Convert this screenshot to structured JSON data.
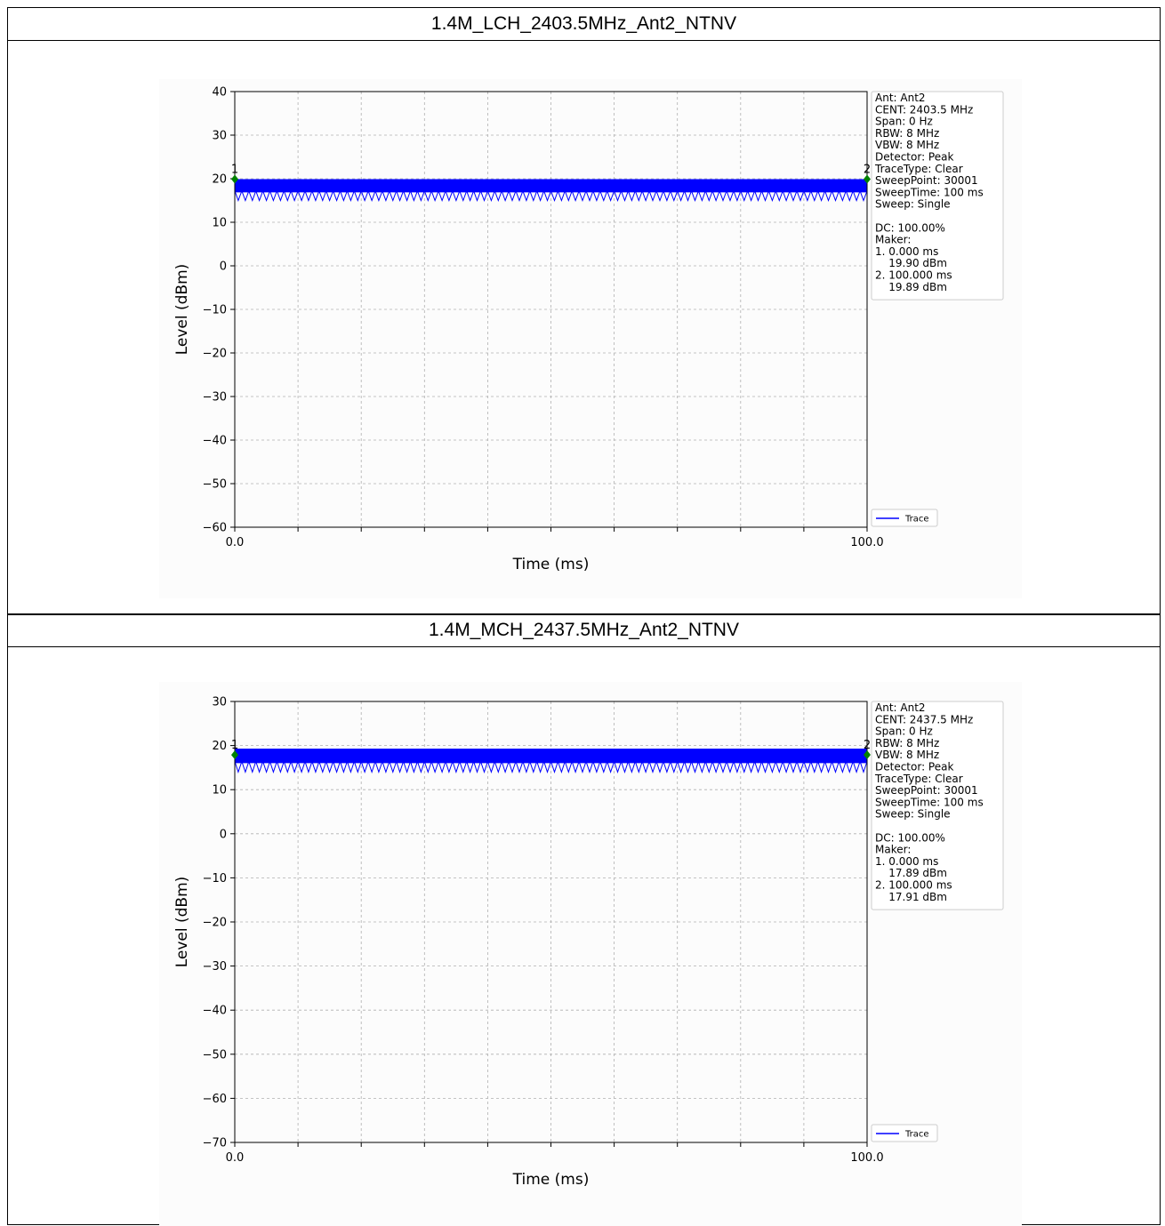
{
  "panels": [
    {
      "title": "1.4M_LCH_2403.5MHz_Ant2_NTNV",
      "xlabel": "Time (ms)",
      "ylabel": "Level (dBm)",
      "xticks": [
        "0.0",
        "100.0"
      ],
      "yticks": [
        "40",
        "30",
        "20",
        "10",
        "0",
        "−10",
        "−20",
        "−30",
        "−40",
        "−50",
        "−60"
      ],
      "info_lines": [
        "Ant: Ant2",
        "CENT: 2403.5 MHz",
        "Span: 0 Hz",
        "RBW: 8 MHz",
        "VBW: 8 MHz",
        "Detector: Peak",
        "TraceType: Clear",
        "SweepPoint: 30001",
        "SweepTime: 100 ms",
        "Sweep: Single",
        "",
        "DC: 100.00%",
        "Maker:",
        "1. 0.000 ms",
        "    19.90 dBm",
        "2. 100.000 ms",
        "    19.89 dBm"
      ],
      "legend_label": "Trace",
      "marker_labels": [
        "1",
        "2"
      ]
    },
    {
      "title": "1.4M_MCH_2437.5MHz_Ant2_NTNV",
      "xlabel": "Time (ms)",
      "ylabel": "Level (dBm)",
      "xticks": [
        "0.0",
        "100.0"
      ],
      "yticks": [
        "30",
        "20",
        "10",
        "0",
        "−10",
        "−20",
        "−30",
        "−40",
        "−50",
        "−60",
        "−70"
      ],
      "info_lines": [
        "Ant: Ant2",
        "CENT: 2437.5 MHz",
        "Span: 0 Hz",
        "RBW: 8 MHz",
        "VBW: 8 MHz",
        "Detector: Peak",
        "TraceType: Clear",
        "SweepPoint: 30001",
        "SweepTime: 100 ms",
        "Sweep: Single",
        "",
        "DC: 100.00%",
        "Maker:",
        "1. 0.000 ms",
        "    17.89 dBm",
        "2. 100.000 ms",
        "    17.91 dBm"
      ],
      "legend_label": "Trace",
      "marker_labels": [
        "1",
        "2"
      ]
    }
  ],
  "colors": {
    "trace": "#0000ff",
    "marker": "#008000",
    "grid": "#b0b0b0"
  },
  "chart_data": [
    {
      "type": "line",
      "xlabel": "Time (ms)",
      "ylabel": "Level (dBm)",
      "xlim": [
        0,
        100
      ],
      "ylim": [
        -60,
        40
      ],
      "grid": true,
      "legend": "bottom-right",
      "series": [
        {
          "name": "Trace",
          "x": [
            0,
            100
          ],
          "y_max": [
            19.9,
            19.89
          ],
          "y_min": [
            15,
            15
          ]
        }
      ],
      "markers": [
        {
          "label": "1",
          "x": 0.0,
          "y": 19.9
        },
        {
          "label": "2",
          "x": 100.0,
          "y": 19.89
        }
      ]
    },
    {
      "type": "line",
      "xlabel": "Time (ms)",
      "ylabel": "Level (dBm)",
      "xlim": [
        0,
        100
      ],
      "ylim": [
        -70,
        30
      ],
      "grid": true,
      "legend": "bottom-right",
      "series": [
        {
          "name": "Trace",
          "x": [
            0,
            100
          ],
          "y_max": [
            19.3,
            19.3
          ],
          "y_min": [
            14,
            14
          ]
        }
      ],
      "markers": [
        {
          "label": "1",
          "x": 0.0,
          "y": 17.89
        },
        {
          "label": "2",
          "x": 100.0,
          "y": 17.91
        }
      ]
    }
  ]
}
